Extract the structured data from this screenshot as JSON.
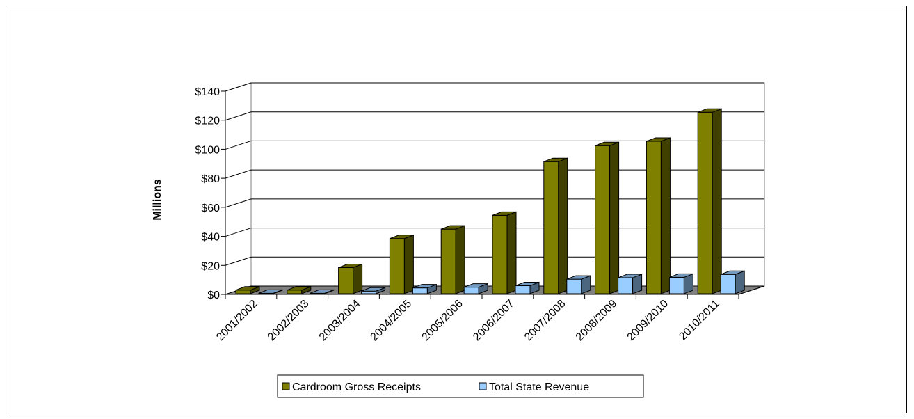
{
  "chart_data": {
    "type": "bar",
    "title": "",
    "xlabel": "",
    "ylabel": "Millions",
    "ylim": [
      0,
      140
    ],
    "yticks": [
      "$0",
      "$20",
      "$40",
      "$60",
      "$80",
      "$100",
      "$120",
      "$140"
    ],
    "ytick_values": [
      0,
      20,
      40,
      60,
      80,
      100,
      120,
      140
    ],
    "grid": true,
    "three_d": true,
    "legend_position": "bottom",
    "categories": [
      "2001/2002",
      "2002/2003",
      "2003/2004",
      "2004/2005",
      "2005/2006",
      "2006/2007",
      "2007/2008",
      "2008/2009",
      "2009/2010",
      "2010/2011"
    ],
    "series": [
      {
        "name": "Cardroom Gross Receipts",
        "color": "#808000",
        "values": [
          2.5,
          2.5,
          18,
          38,
          44.5,
          54,
          91,
          102,
          105,
          125
        ]
      },
      {
        "name": "Total State Revenue",
        "color": "#99CCFF",
        "values": [
          0.3,
          0.3,
          1.8,
          4,
          4.5,
          5.5,
          10,
          11,
          11.3,
          13.3
        ]
      }
    ]
  }
}
